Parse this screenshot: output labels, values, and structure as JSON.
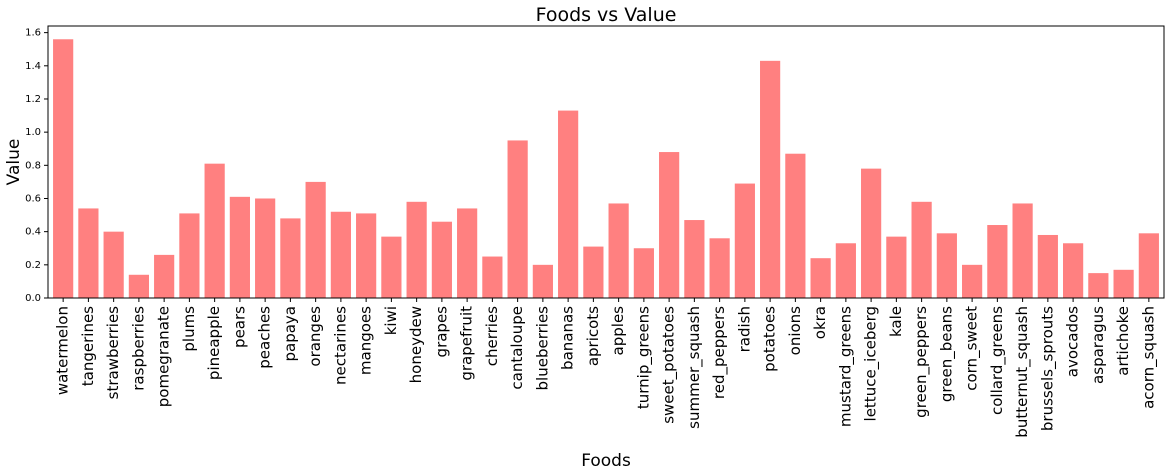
{
  "chart_data": {
    "type": "bar",
    "title": "Foods vs Value",
    "xlabel": "Foods",
    "ylabel": "Value",
    "ylim": [
      0,
      1.64
    ],
    "yticks": [
      "0.0",
      "0.2",
      "0.4",
      "0.6",
      "0.8",
      "1.0",
      "1.2",
      "1.4",
      "1.6"
    ],
    "bar_color": "#ff8080",
    "grid": false,
    "categories": [
      "watermelon",
      "tangerines",
      "strawberries",
      "raspberries",
      "pomegranate",
      "plums",
      "pineapple",
      "pears",
      "peaches",
      "papaya",
      "oranges",
      "nectarines",
      "mangoes",
      "kiwi",
      "honeydew",
      "grapes",
      "grapefruit",
      "cherries",
      "cantaloupe",
      "blueberries",
      "bananas",
      "apricots",
      "apples",
      "turnip_greens",
      "sweet_potatoes",
      "summer_squash",
      "red_peppers",
      "radish",
      "potatoes",
      "onions",
      "okra",
      "mustard_greens",
      "lettuce_iceberg",
      "kale",
      "green_peppers",
      "green_beans",
      "corn_sweet",
      "collard_greens",
      "butternut_squash",
      "brussels_sprouts",
      "avocados",
      "asparagus",
      "artichoke",
      "acorn_squash"
    ],
    "values": [
      1.56,
      0.54,
      0.4,
      0.14,
      0.26,
      0.51,
      0.81,
      0.61,
      0.6,
      0.48,
      0.7,
      0.52,
      0.51,
      0.37,
      0.58,
      0.46,
      0.54,
      0.25,
      0.95,
      0.2,
      1.13,
      0.31,
      0.57,
      0.3,
      0.88,
      0.47,
      0.36,
      0.69,
      1.43,
      0.87,
      0.24,
      0.33,
      0.78,
      0.37,
      0.58,
      0.39,
      0.2,
      0.44,
      0.57,
      0.38,
      0.33,
      0.15,
      0.17,
      0.39
    ]
  }
}
